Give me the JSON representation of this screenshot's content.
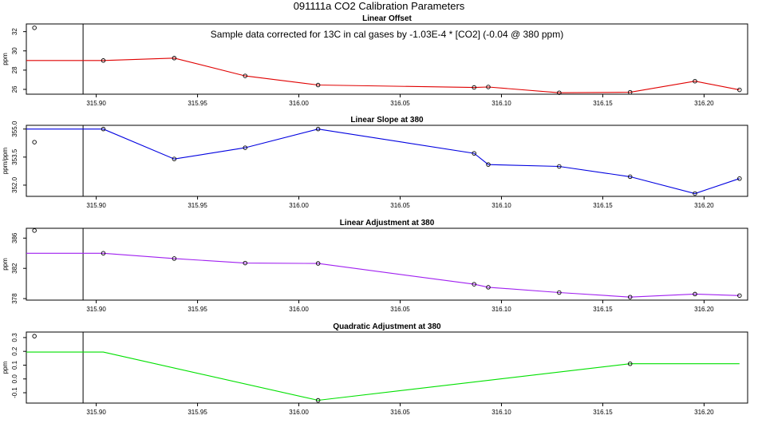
{
  "page_title": "091111a   CO2 Calibration Parameters",
  "annotation": "Sample data corrected for 13C in cal gases by -1.03E-4 * [CO2] (-0.04 @ 380 ppm)",
  "x_axis": {
    "ticks": [
      315.9,
      315.95,
      316.0,
      316.05,
      316.1,
      316.15,
      316.2
    ],
    "tick_labels": [
      "315.90",
      "315.95",
      "316.00",
      "316.05",
      "316.10",
      "316.15",
      "316.20"
    ],
    "xlim": [
      315.8655,
      316.2215
    ],
    "vline": 315.8935
  },
  "chart_data": [
    {
      "type": "line",
      "title": "Linear Offset",
      "ylabel": "ppm",
      "ylim": [
        25.5,
        32.8
      ],
      "yticks": [
        26,
        28,
        30,
        32
      ],
      "ytick_labels": [
        "26",
        "28",
        "30",
        "32"
      ],
      "line_color": "#e00000",
      "line_x": [
        315.8655,
        315.9035,
        315.9385,
        315.9735,
        316.0095,
        316.0865,
        316.0935,
        316.1285,
        316.1635,
        316.1955,
        316.2175
      ],
      "line_y": [
        29.0,
        29.0,
        29.25,
        27.4,
        26.45,
        26.2,
        26.25,
        25.65,
        25.7,
        26.85,
        25.95
      ],
      "points_x": [
        315.8695,
        315.9035,
        315.9385,
        315.9735,
        316.0095,
        316.0865,
        316.0935,
        316.1285,
        316.1635,
        316.1955,
        316.2175
      ],
      "points_y": [
        32.4,
        29.0,
        29.25,
        27.4,
        26.45,
        26.2,
        26.25,
        25.65,
        25.7,
        26.85,
        25.95
      ]
    },
    {
      "type": "line",
      "title": "Linear Slope at 380",
      "ylabel": "ppm/ppm",
      "ylim": [
        351.4,
        355.2
      ],
      "yticks": [
        352.0,
        353.5,
        355.0
      ],
      "ytick_labels": [
        "352.0",
        "353.5",
        "355.0"
      ],
      "line_color": "#0000e0",
      "line_x": [
        315.8655,
        315.9035,
        315.9385,
        315.9735,
        316.0095,
        316.0865,
        316.0935,
        316.1285,
        316.1635,
        316.1955,
        316.2175
      ],
      "line_y": [
        355.0,
        355.0,
        353.4,
        354.0,
        355.0,
        353.7,
        353.1,
        353.0,
        352.45,
        351.55,
        352.35
      ],
      "points_x": [
        315.8695,
        315.9035,
        315.9385,
        315.9735,
        316.0095,
        316.0865,
        316.0935,
        316.1285,
        316.1635,
        316.1955,
        316.2175
      ],
      "points_y": [
        354.3,
        355.0,
        353.4,
        354.0,
        355.0,
        353.7,
        353.1,
        353.0,
        352.45,
        351.55,
        352.35
      ]
    },
    {
      "type": "line",
      "title": "Linear Adjustment at 380",
      "ylabel": "ppm",
      "ylim": [
        377.8,
        387.3
      ],
      "yticks": [
        378,
        382,
        386
      ],
      "ytick_labels": [
        "378",
        "382",
        "386"
      ],
      "line_color": "#a020f0",
      "line_x": [
        315.8655,
        315.9035,
        315.9385,
        315.9735,
        316.0095,
        316.0865,
        316.0935,
        316.1285,
        316.1635,
        316.1955,
        316.2175
      ],
      "line_y": [
        384.0,
        384.0,
        383.3,
        382.7,
        382.65,
        379.9,
        379.5,
        378.8,
        378.2,
        378.6,
        378.4
      ],
      "points_x": [
        315.8695,
        315.9035,
        315.9385,
        315.9735,
        316.0095,
        316.0865,
        316.0935,
        316.1285,
        316.1635,
        316.1955,
        316.2175
      ],
      "points_y": [
        387.0,
        384.0,
        383.3,
        382.7,
        382.65,
        379.9,
        379.5,
        378.8,
        378.2,
        378.6,
        378.4
      ]
    },
    {
      "type": "line",
      "title": "Quadratic Adjustment at 380",
      "ylabel": "ppm",
      "ylim": [
        -0.175,
        0.34
      ],
      "yticks": [
        -0.1,
        0.0,
        0.1,
        0.2,
        0.3
      ],
      "ytick_labels": [
        "-0.1",
        "0.0",
        "0.1",
        "0.2",
        "0.3"
      ],
      "line_color": "#00e000",
      "line_x": [
        315.8655,
        315.9035,
        316.0095,
        316.1635,
        316.2175
      ],
      "line_y": [
        0.195,
        0.195,
        -0.155,
        0.11,
        0.11
      ],
      "points_x": [
        315.8695,
        316.0095,
        316.1635
      ],
      "points_y": [
        0.31,
        -0.155,
        0.11
      ]
    }
  ]
}
